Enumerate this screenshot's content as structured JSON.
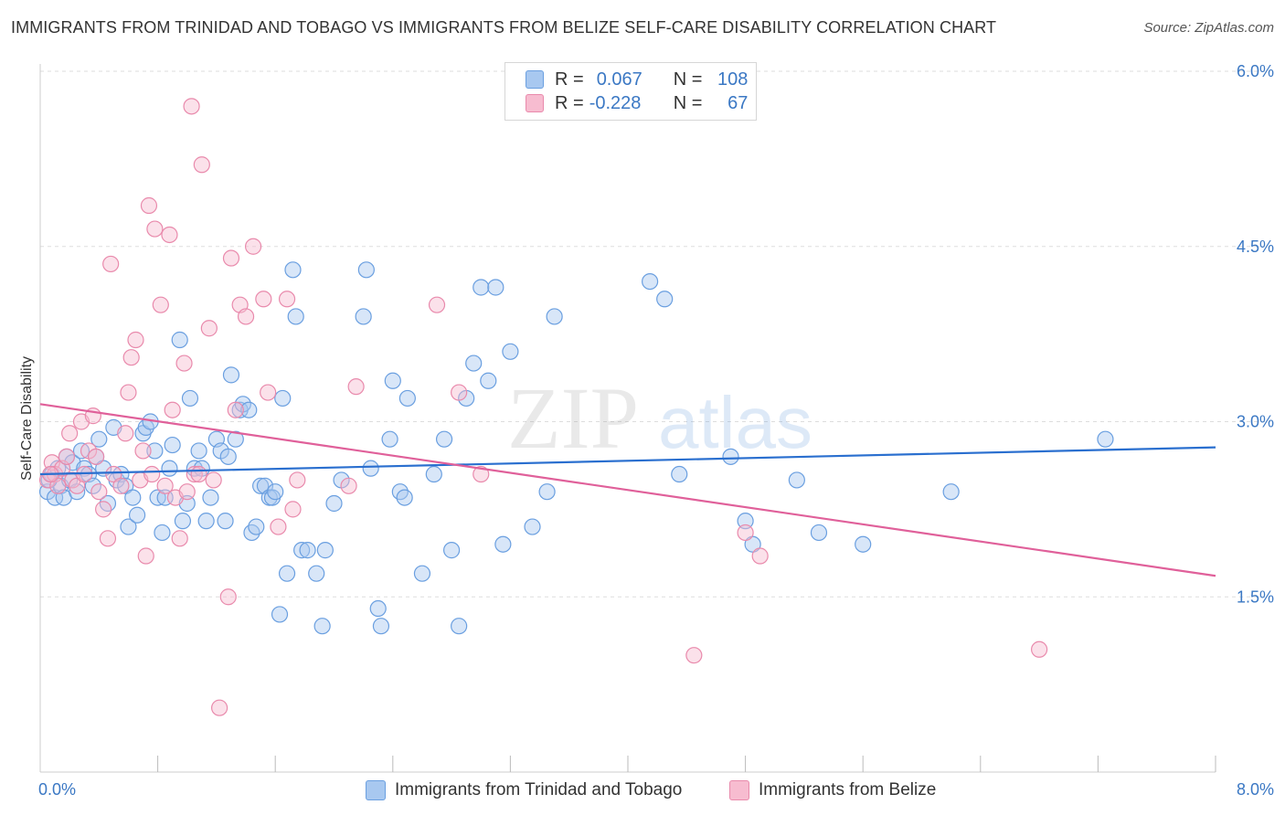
{
  "title": "IMMIGRANTS FROM TRINIDAD AND TOBAGO VS IMMIGRANTS FROM BELIZE SELF-CARE DISABILITY CORRELATION CHART",
  "source": "Source: ZipAtlas.com",
  "watermark": {
    "zip": "ZIP",
    "atlas": "atlas"
  },
  "legend": {
    "rows": [
      {
        "r_label": "R =",
        "r_value": "0.067",
        "n_label": "N =",
        "n_value": "108",
        "color": "#a8c8f0",
        "border": "#6a9fe0"
      },
      {
        "r_label": "R =",
        "r_value": "-0.228",
        "n_label": "N =",
        "n_value": "67",
        "color": "#f7bcd0",
        "border": "#e98aac"
      }
    ]
  },
  "chart_data": {
    "type": "scatter",
    "xlabel": "",
    "ylabel": "Self-Care Disability",
    "xlim": [
      0,
      8
    ],
    "ylim": [
      0,
      6
    ],
    "x_tick_labels": [
      "0.0%",
      "8.0%"
    ],
    "y_ticks": [
      1.5,
      3.0,
      4.5,
      6.0
    ],
    "y_tick_labels": [
      "1.5%",
      "3.0%",
      "4.5%",
      "6.0%"
    ],
    "grid": true,
    "legend_position": "bottom",
    "series": [
      {
        "name": "Immigrants from Trinidad and Tobago",
        "color": "#6a9fe0",
        "fill": "#a8c8f0",
        "trend": {
          "x": [
            0,
            8
          ],
          "y": [
            2.55,
            2.78
          ],
          "color": "#2a6fcf"
        },
        "points": [
          [
            0.05,
            2.4
          ],
          [
            0.08,
            2.55
          ],
          [
            0.1,
            2.35
          ],
          [
            0.12,
            2.6
          ],
          [
            0.14,
            2.45
          ],
          [
            0.16,
            2.35
          ],
          [
            0.18,
            2.7
          ],
          [
            0.2,
            2.5
          ],
          [
            0.22,
            2.65
          ],
          [
            0.25,
            2.4
          ],
          [
            0.28,
            2.75
          ],
          [
            0.3,
            2.6
          ],
          [
            0.33,
            2.55
          ],
          [
            0.36,
            2.45
          ],
          [
            0.38,
            2.7
          ],
          [
            0.4,
            2.85
          ],
          [
            0.43,
            2.6
          ],
          [
            0.46,
            2.3
          ],
          [
            0.5,
            2.95
          ],
          [
            0.52,
            2.5
          ],
          [
            0.55,
            2.55
          ],
          [
            0.58,
            2.45
          ],
          [
            0.6,
            2.1
          ],
          [
            0.63,
            2.35
          ],
          [
            0.66,
            2.2
          ],
          [
            0.7,
            2.9
          ],
          [
            0.72,
            2.95
          ],
          [
            0.75,
            3.0
          ],
          [
            0.78,
            2.75
          ],
          [
            0.8,
            2.35
          ],
          [
            0.83,
            2.05
          ],
          [
            0.85,
            2.35
          ],
          [
            0.88,
            2.6
          ],
          [
            0.9,
            2.8
          ],
          [
            0.95,
            3.7
          ],
          [
            0.97,
            2.15
          ],
          [
            1.0,
            2.3
          ],
          [
            1.02,
            3.2
          ],
          [
            1.05,
            2.6
          ],
          [
            1.08,
            2.75
          ],
          [
            1.1,
            2.6
          ],
          [
            1.13,
            2.15
          ],
          [
            1.16,
            2.35
          ],
          [
            1.2,
            2.85
          ],
          [
            1.23,
            2.75
          ],
          [
            1.26,
            2.15
          ],
          [
            1.28,
            2.7
          ],
          [
            1.3,
            3.4
          ],
          [
            1.33,
            2.85
          ],
          [
            1.36,
            3.1
          ],
          [
            1.38,
            3.15
          ],
          [
            1.42,
            3.1
          ],
          [
            1.44,
            2.05
          ],
          [
            1.47,
            2.1
          ],
          [
            1.5,
            2.45
          ],
          [
            1.53,
            2.45
          ],
          [
            1.56,
            2.35
          ],
          [
            1.58,
            2.35
          ],
          [
            1.6,
            2.4
          ],
          [
            1.63,
            1.35
          ],
          [
            1.65,
            3.2
          ],
          [
            1.68,
            1.7
          ],
          [
            1.72,
            4.3
          ],
          [
            1.74,
            3.9
          ],
          [
            1.78,
            1.9
          ],
          [
            1.82,
            1.9
          ],
          [
            1.88,
            1.7
          ],
          [
            1.92,
            1.25
          ],
          [
            1.94,
            1.9
          ],
          [
            2.0,
            2.3
          ],
          [
            2.05,
            2.5
          ],
          [
            2.2,
            3.9
          ],
          [
            2.22,
            4.3
          ],
          [
            2.25,
            2.6
          ],
          [
            2.3,
            1.4
          ],
          [
            2.32,
            1.25
          ],
          [
            2.38,
            2.85
          ],
          [
            2.4,
            3.35
          ],
          [
            2.45,
            2.4
          ],
          [
            2.48,
            2.35
          ],
          [
            2.5,
            3.2
          ],
          [
            2.6,
            1.7
          ],
          [
            2.68,
            2.55
          ],
          [
            2.75,
            2.85
          ],
          [
            2.8,
            1.9
          ],
          [
            2.85,
            1.25
          ],
          [
            2.9,
            3.2
          ],
          [
            2.95,
            3.5
          ],
          [
            3.0,
            4.15
          ],
          [
            3.05,
            3.35
          ],
          [
            3.1,
            4.15
          ],
          [
            3.15,
            1.95
          ],
          [
            3.2,
            3.6
          ],
          [
            3.35,
            2.1
          ],
          [
            3.45,
            2.4
          ],
          [
            3.5,
            3.9
          ],
          [
            4.15,
            4.2
          ],
          [
            4.25,
            4.05
          ],
          [
            4.35,
            2.55
          ],
          [
            4.7,
            2.7
          ],
          [
            4.8,
            2.15
          ],
          [
            4.85,
            1.95
          ],
          [
            5.15,
            2.5
          ],
          [
            5.3,
            2.05
          ],
          [
            5.6,
            1.95
          ],
          [
            6.2,
            2.4
          ],
          [
            7.25,
            2.85
          ],
          [
            0.06,
            2.5
          ]
        ]
      },
      {
        "name": "Immigrants from Belize",
        "color": "#e98aac",
        "fill": "#f7bcd0",
        "trend": {
          "x": [
            0,
            8
          ],
          "y": [
            3.15,
            1.68
          ],
          "color": "#e0609a"
        },
        "points": [
          [
            0.05,
            2.5
          ],
          [
            0.08,
            2.65
          ],
          [
            0.1,
            2.55
          ],
          [
            0.12,
            2.45
          ],
          [
            0.15,
            2.6
          ],
          [
            0.18,
            2.7
          ],
          [
            0.2,
            2.9
          ],
          [
            0.22,
            2.5
          ],
          [
            0.25,
            2.45
          ],
          [
            0.28,
            3.0
          ],
          [
            0.3,
            2.55
          ],
          [
            0.33,
            2.75
          ],
          [
            0.36,
            3.05
          ],
          [
            0.38,
            2.7
          ],
          [
            0.4,
            2.4
          ],
          [
            0.43,
            2.25
          ],
          [
            0.46,
            2.0
          ],
          [
            0.48,
            4.35
          ],
          [
            0.5,
            2.55
          ],
          [
            0.55,
            2.45
          ],
          [
            0.58,
            2.9
          ],
          [
            0.6,
            3.25
          ],
          [
            0.62,
            3.55
          ],
          [
            0.65,
            3.7
          ],
          [
            0.68,
            2.5
          ],
          [
            0.7,
            2.75
          ],
          [
            0.72,
            1.85
          ],
          [
            0.74,
            4.85
          ],
          [
            0.76,
            2.55
          ],
          [
            0.78,
            4.65
          ],
          [
            0.82,
            4.0
          ],
          [
            0.85,
            2.45
          ],
          [
            0.88,
            4.6
          ],
          [
            0.9,
            3.1
          ],
          [
            0.92,
            2.35
          ],
          [
            0.95,
            2.0
          ],
          [
            0.98,
            3.5
          ],
          [
            1.0,
            2.4
          ],
          [
            1.03,
            5.7
          ],
          [
            1.05,
            2.55
          ],
          [
            1.08,
            2.55
          ],
          [
            1.1,
            5.2
          ],
          [
            1.15,
            3.8
          ],
          [
            1.18,
            2.5
          ],
          [
            1.22,
            0.55
          ],
          [
            1.28,
            1.5
          ],
          [
            1.3,
            4.4
          ],
          [
            1.33,
            3.1
          ],
          [
            1.36,
            4.0
          ],
          [
            1.4,
            3.9
          ],
          [
            1.45,
            4.5
          ],
          [
            1.52,
            4.05
          ],
          [
            1.55,
            3.25
          ],
          [
            1.62,
            2.1
          ],
          [
            1.68,
            4.05
          ],
          [
            1.72,
            2.25
          ],
          [
            1.75,
            2.5
          ],
          [
            2.1,
            2.45
          ],
          [
            2.15,
            3.3
          ],
          [
            2.7,
            4.0
          ],
          [
            2.85,
            3.25
          ],
          [
            3.0,
            2.55
          ],
          [
            4.45,
            1.0
          ],
          [
            4.8,
            2.05
          ],
          [
            4.9,
            1.85
          ],
          [
            6.8,
            1.05
          ],
          [
            0.07,
            2.55
          ]
        ]
      }
    ]
  },
  "bottom_legend": {
    "item1": "Immigrants from Trinidad and Tobago",
    "item2": "Immigrants from Belize"
  }
}
